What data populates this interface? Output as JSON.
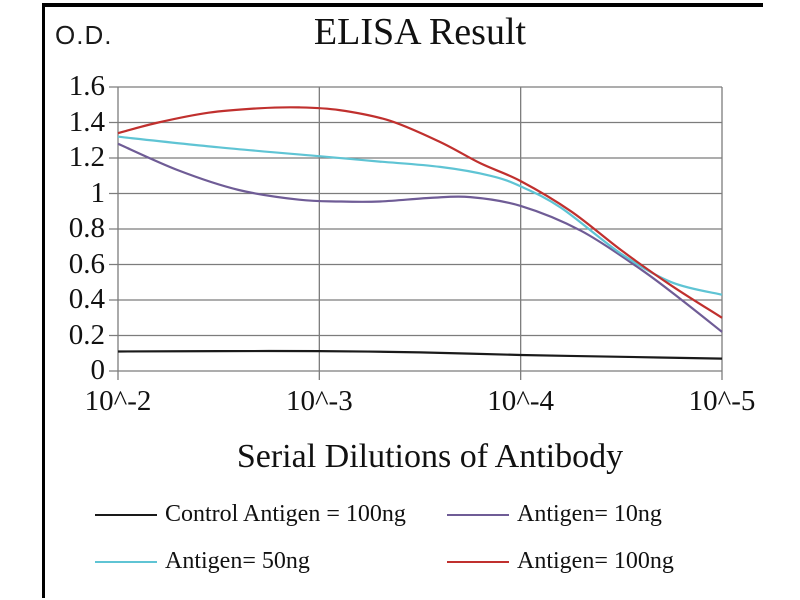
{
  "title": "ELISA Result",
  "y_axis_unit": "O.D.",
  "x_axis_title": "Serial Dilutions of Antibody",
  "colors": {
    "control": "#1a1a1a",
    "antigen_10ng": "#6f5c96",
    "antigen_50ng": "#5fc4d4",
    "antigen_100ng": "#c0302e",
    "grid": "#7c7c7c",
    "frame": "#000000"
  },
  "legend": {
    "items": [
      {
        "label": "Control Antigen = 100ng",
        "color": "#1a1a1a"
      },
      {
        "label": "Antigen= 10ng",
        "color": "#6f5c96"
      },
      {
        "label": "Antigen= 50ng",
        "color": "#5fc4d4"
      },
      {
        "label": "Antigen= 100ng",
        "color": "#c0302e"
      }
    ]
  },
  "chart_data": {
    "type": "line",
    "title": "ELISA Result",
    "xlabel": "Serial Dilutions of Antibody",
    "ylabel": "O.D.",
    "x_tick_labels": [
      "10^-2",
      "10^-3",
      "10^-4",
      "10^-5"
    ],
    "x_tick_exponents": [
      2,
      3,
      4,
      5
    ],
    "y_tick_labels": [
      "0",
      "0.2",
      "0.4",
      "0.6",
      "0.8",
      "1",
      "1.2",
      "1.4",
      "1.6"
    ],
    "y_tick_values": [
      0,
      0.2,
      0.4,
      0.6,
      0.8,
      1,
      1.2,
      1.4,
      1.6
    ],
    "ylim": [
      0,
      1.6
    ],
    "grid": true,
    "legend_position": "bottom",
    "series": [
      {
        "name": "Control Antigen = 100ng",
        "color": "#1a1a1a",
        "points": [
          [
            2,
            0.11
          ],
          [
            2.5,
            0.112
          ],
          [
            3,
            0.112
          ],
          [
            3.5,
            0.105
          ],
          [
            4,
            0.09
          ],
          [
            4.5,
            0.08
          ],
          [
            5,
            0.07
          ]
        ]
      },
      {
        "name": "Antigen= 10ng",
        "color": "#6f5c96",
        "points": [
          [
            2,
            1.28
          ],
          [
            2.3,
            1.13
          ],
          [
            2.6,
            1.02
          ],
          [
            2.9,
            0.965
          ],
          [
            3.1,
            0.955
          ],
          [
            3.3,
            0.955
          ],
          [
            3.55,
            0.975
          ],
          [
            3.75,
            0.98
          ],
          [
            4,
            0.93
          ],
          [
            4.3,
            0.79
          ],
          [
            4.6,
            0.57
          ],
          [
            4.8,
            0.4
          ],
          [
            5,
            0.22
          ]
        ]
      },
      {
        "name": "Antigen= 50ng",
        "color": "#5fc4d4",
        "points": [
          [
            2,
            1.32
          ],
          [
            2.5,
            1.26
          ],
          [
            3,
            1.21
          ],
          [
            3.3,
            1.18
          ],
          [
            3.6,
            1.15
          ],
          [
            3.85,
            1.1
          ],
          [
            4,
            1.04
          ],
          [
            4.2,
            0.92
          ],
          [
            4.5,
            0.66
          ],
          [
            4.75,
            0.5
          ],
          [
            5,
            0.43
          ]
        ]
      },
      {
        "name": "Antigen= 100ng",
        "color": "#c0302e",
        "points": [
          [
            2,
            1.34
          ],
          [
            2.2,
            1.4
          ],
          [
            2.45,
            1.455
          ],
          [
            2.7,
            1.48
          ],
          [
            2.9,
            1.485
          ],
          [
            3.1,
            1.47
          ],
          [
            3.35,
            1.41
          ],
          [
            3.6,
            1.29
          ],
          [
            3.8,
            1.17
          ],
          [
            4,
            1.07
          ],
          [
            4.25,
            0.9
          ],
          [
            4.5,
            0.68
          ],
          [
            4.75,
            0.48
          ],
          [
            5,
            0.3
          ]
        ]
      }
    ]
  }
}
